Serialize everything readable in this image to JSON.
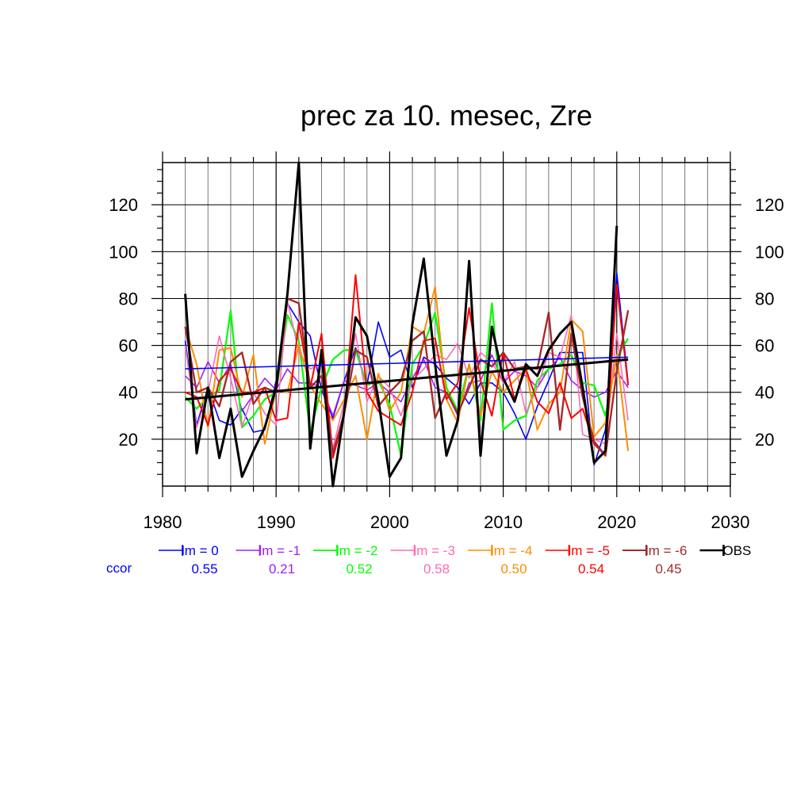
{
  "chart_data": {
    "type": "line",
    "title": "prec za 10. mesec, Zre",
    "xlabel": "",
    "ylabel": "",
    "xlim": [
      1980,
      2030
    ],
    "ylim": [
      0,
      140
    ],
    "xticks": [
      1980,
      1990,
      2000,
      2010,
      2020,
      2030
    ],
    "yticks": [
      20,
      40,
      60,
      80,
      100,
      120
    ],
    "grid": true,
    "legend_position": "bottom",
    "ccor_label": "ccor",
    "x": [
      1982,
      1983,
      1984,
      1985,
      1986,
      1987,
      1988,
      1989,
      1990,
      1991,
      1992,
      1993,
      1994,
      1995,
      1996,
      1997,
      1998,
      1999,
      2000,
      2001,
      2002,
      2003,
      2004,
      2005,
      2006,
      2007,
      2008,
      2009,
      2010,
      2011,
      2012,
      2013,
      2014,
      2015,
      2016,
      2017,
      2018,
      2019,
      2020,
      2021
    ],
    "series": [
      {
        "name": "lm = 0",
        "color": "#0000ff",
        "ccor": "0.55",
        "width": 1.6,
        "values": [
          62,
          26,
          42,
          28,
          26,
          33,
          23,
          24,
          45,
          78,
          70,
          64,
          41,
          29,
          45,
          59,
          43,
          70,
          55,
          58,
          42,
          55,
          52,
          46,
          42,
          35,
          44,
          44,
          40,
          31,
          20,
          34,
          45,
          57,
          57,
          57,
          9,
          24,
          91,
          44
        ],
        "trend": [
          50,
          55
        ]
      },
      {
        "name": "lm = -1",
        "color": "#a020f0",
        "ccor": "0.21",
        "width": 1.6,
        "values": [
          47,
          42,
          53,
          44,
          52,
          32,
          39,
          46,
          41,
          50,
          44,
          44,
          42,
          30,
          45,
          43,
          41,
          44,
          40,
          36,
          46,
          54,
          42,
          40,
          30,
          44,
          45,
          56,
          44,
          49,
          47,
          42,
          50,
          55,
          45,
          41,
          38,
          40,
          49,
          42
        ]
      },
      {
        "name": "lm = -2",
        "color": "#00ff00",
        "ccor": "0.52",
        "width": 2.2,
        "values": [
          38,
          33,
          38,
          41,
          75,
          25,
          30,
          37,
          40,
          73,
          62,
          23,
          42,
          54,
          58,
          58,
          43,
          45,
          35,
          13,
          52,
          60,
          74,
          42,
          32,
          52,
          28,
          78,
          24,
          28,
          30,
          45,
          50,
          52,
          56,
          44,
          43,
          30,
          55,
          63
        ]
      },
      {
        "name": "lm = -3",
        "color": "#ff69b4",
        "ccor": "0.58",
        "width": 1.6,
        "values": [
          60,
          25,
          40,
          64,
          46,
          25,
          40,
          31,
          26,
          79,
          57,
          50,
          52,
          16,
          36,
          65,
          36,
          47,
          42,
          30,
          45,
          50,
          56,
          54,
          61,
          46,
          57,
          53,
          44,
          53,
          31,
          42,
          57,
          55,
          73,
          22,
          20,
          18,
          65,
          28
        ]
      },
      {
        "name": "lm = -4",
        "color": "#ff8c00",
        "ccor": "0.50",
        "width": 2.0,
        "values": [
          68,
          52,
          25,
          58,
          59,
          38,
          56,
          18,
          41,
          40,
          60,
          43,
          35,
          28,
          37,
          47,
          20,
          48,
          32,
          40,
          68,
          65,
          85,
          37,
          27,
          52,
          30,
          49,
          40,
          45,
          50,
          24,
          35,
          40,
          71,
          66,
          21,
          27,
          56,
          15
        ]
      },
      {
        "name": "lm = -5",
        "color": "#ff0000",
        "ccor": "0.54",
        "width": 2.0,
        "values": [
          40,
          38,
          26,
          45,
          50,
          40,
          40,
          42,
          28,
          29,
          70,
          42,
          65,
          12,
          30,
          90,
          40,
          32,
          29,
          26,
          40,
          62,
          63,
          37,
          44,
          76,
          45,
          30,
          57,
          37,
          50,
          36,
          31,
          44,
          29,
          33,
          18,
          13,
          86,
          43
        ]
      },
      {
        "name": "lm = -6",
        "color": "#a52a2a",
        "ccor": "0.45",
        "width": 2.4,
        "values": [
          68,
          40,
          42,
          34,
          53,
          57,
          35,
          42,
          40,
          80,
          78,
          42,
          47,
          14,
          31,
          58,
          55,
          34,
          40,
          45,
          62,
          66,
          29,
          40,
          31,
          42,
          54,
          51,
          57,
          50,
          51,
          50,
          74,
          24,
          65,
          38,
          19,
          13,
          49,
          75
        ]
      },
      {
        "name": "OBS",
        "color": "#000000",
        "ccor": "",
        "width": 3.0,
        "values": [
          82,
          14,
          42,
          12,
          33,
          4,
          15,
          25,
          42,
          82,
          138,
          16,
          58,
          0,
          32,
          72,
          64,
          37,
          4,
          12,
          69,
          97,
          52,
          13,
          28,
          96,
          13,
          68,
          46,
          36,
          52,
          47,
          58,
          65,
          70,
          42,
          10,
          15,
          111,
          null
        ],
        "trend": [
          37,
          54
        ]
      }
    ]
  }
}
